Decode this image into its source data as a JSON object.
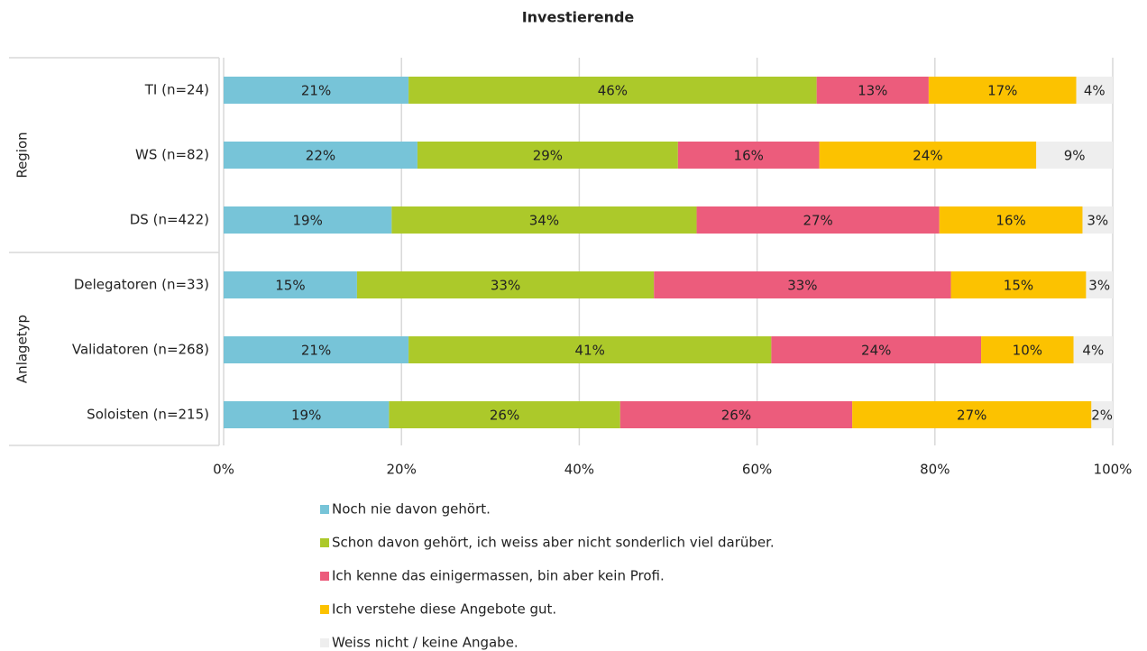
{
  "chart_data": {
    "type": "stacked-bar-horizontal",
    "title": "Investierende",
    "categories": [
      "TI (n=24)",
      "WS (n=82)",
      "DS (n=422)",
      "Delegatoren (n=33)",
      "Validatoren (n=268)",
      "Soloisten (n=215)"
    ],
    "groups": [
      {
        "label": "Region",
        "span": 3
      },
      {
        "label": "Anlagetyp",
        "span": 3
      }
    ],
    "series": [
      {
        "name": "Noch nie davon gehört.",
        "color": "#77c4d8",
        "values": [
          20.8,
          21.8,
          18.9,
          15.0,
          20.8,
          18.6
        ],
        "value_labels": [
          "21%",
          "22%",
          "19%",
          "15%",
          "21%",
          "19%"
        ]
      },
      {
        "name": "Schon davon gehört, ich weiss aber nicht sonderlich viel darüber.",
        "color": "#acc92a",
        "values": [
          45.9,
          29.3,
          34.3,
          33.4,
          40.8,
          26.0
        ],
        "value_labels": [
          "46%",
          "29%",
          "34%",
          "33%",
          "41%",
          "26%"
        ]
      },
      {
        "name": "Ich kenne das einigermassen, bin aber kein Profi.",
        "color": "#ec5c7c",
        "values": [
          12.6,
          15.9,
          27.3,
          33.4,
          23.6,
          26.1
        ],
        "value_labels": [
          "13%",
          "16%",
          "27%",
          "33%",
          "24%",
          "26%"
        ]
      },
      {
        "name": "Ich verstehe diese Angebote gut.",
        "color": "#fcc200",
        "values": [
          16.6,
          24.4,
          16.1,
          15.2,
          10.4,
          26.9
        ],
        "value_labels": [
          "17%",
          "24%",
          "16%",
          "15%",
          "10%",
          "27%"
        ]
      },
      {
        "name": "Weiss nicht / keine Angabe.",
        "color": "#eeeeee",
        "values": [
          4.1,
          8.6,
          3.4,
          3.0,
          4.4,
          2.4
        ],
        "value_labels": [
          "4%",
          "9%",
          "3%",
          "3%",
          "4%",
          "2%"
        ]
      }
    ],
    "xlim": [
      0,
      100
    ],
    "xticks": [
      {
        "value": 0,
        "label": "0%"
      },
      {
        "value": 20,
        "label": "20%"
      },
      {
        "value": 40,
        "label": "40%"
      },
      {
        "value": 60,
        "label": "60%"
      },
      {
        "value": 80,
        "label": "80%"
      },
      {
        "value": 100,
        "label": "100%"
      }
    ],
    "grid": true
  }
}
